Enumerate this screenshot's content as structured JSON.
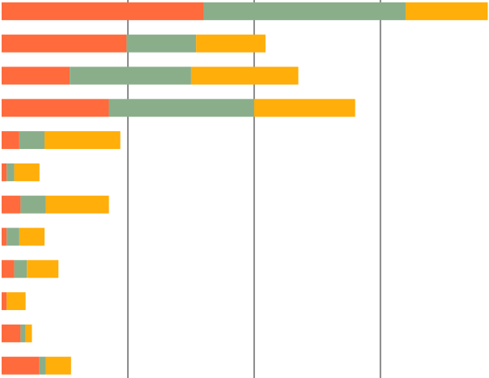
{
  "chart_data": {
    "type": "stacked-barh",
    "categories": [
      null,
      null,
      null,
      null,
      null,
      null,
      null,
      null,
      null,
      null,
      null,
      null
    ],
    "series": [
      {
        "color": "#ff6b3d",
        "values": [
          160,
          99,
          54,
          85,
          14,
          4,
          15,
          4,
          10,
          4,
          15,
          30
        ]
      },
      {
        "color": "#8aae8a",
        "values": [
          160,
          55,
          96,
          115,
          20,
          6,
          20,
          10,
          10,
          0,
          4,
          5
        ]
      },
      {
        "color": "#ffae0a",
        "values": [
          65,
          55,
          85,
          80,
          60,
          20,
          50,
          20,
          25,
          15,
          5,
          20
        ]
      }
    ],
    "xlim": [
      0,
      386
    ],
    "xticks": [
      100,
      200,
      300
    ],
    "grid": true
  }
}
